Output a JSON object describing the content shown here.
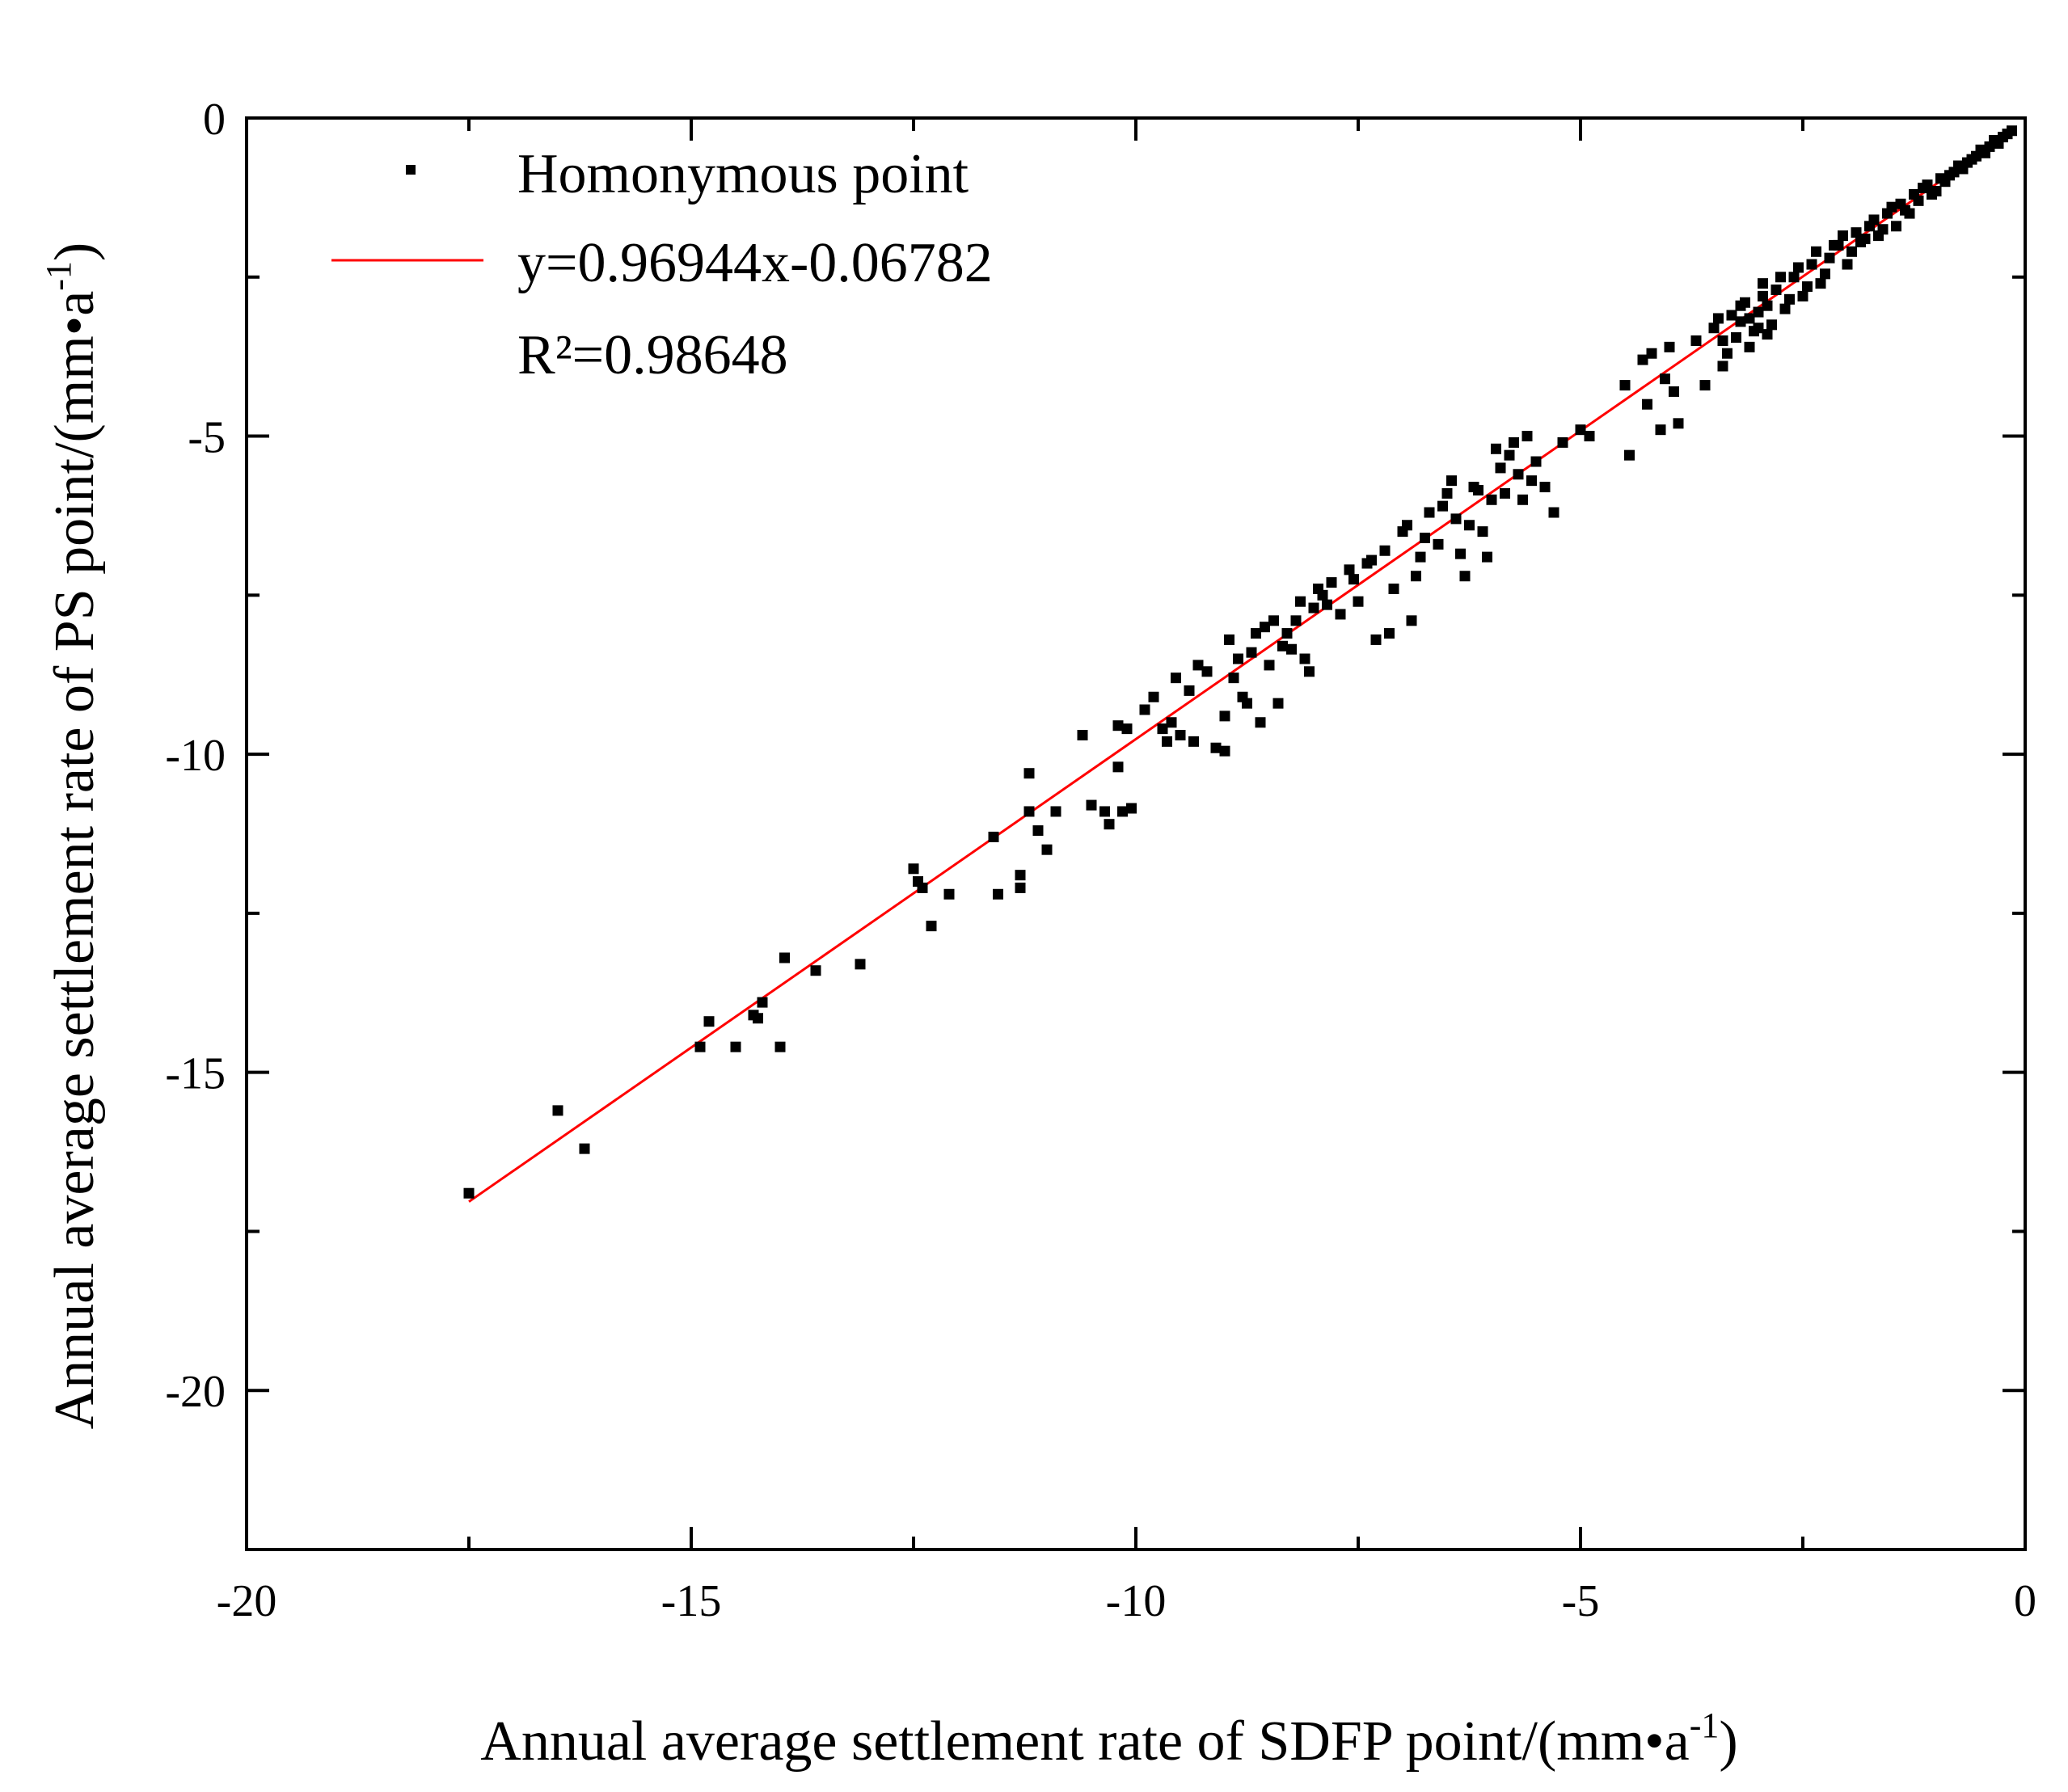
{
  "chart_data": {
    "type": "scatter",
    "title": "",
    "xlabel": "Annual average settlement rate of SDFP point/(mm•a",
    "xlabel_sup": "-1",
    "xlabel_end": ")",
    "ylabel": "Annual average settlement rate of  PS point/(mm•a",
    "ylabel_sup": "-1",
    "ylabel_end": ")",
    "xlim": [
      -20,
      0
    ],
    "ylim": [
      -22.5,
      0
    ],
    "x_ticks": [
      -20,
      -15,
      -10,
      -5,
      0
    ],
    "x_tick_labels": [
      "-20",
      "-15",
      "-10",
      "-5",
      "0"
    ],
    "y_ticks": [
      0,
      -5,
      -10,
      -15,
      -20
    ],
    "y_tick_labels": [
      "0",
      "-5",
      "-10",
      "-15",
      "-20"
    ],
    "grid": false,
    "legend_position": "top-left",
    "legend": {
      "points_label": "Homonymous point",
      "fit_label": "y=0.96944x-0.06782",
      "r2_label": "R²=0.98648"
    },
    "colors": {
      "points": "#000000",
      "fit": "#ff0000",
      "frame": "#000000"
    },
    "fit": {
      "slope": 0.96944,
      "intercept": -0.06782,
      "r2": 0.98648,
      "x_range": [
        -17.5,
        -0.1
      ]
    },
    "series": [
      {
        "name": "Homonymous point",
        "points": [
          [
            -17.5,
            -16.9
          ],
          [
            -16.5,
            -15.6
          ],
          [
            -16.2,
            -16.2
          ],
          [
            -14.9,
            -14.6
          ],
          [
            -14.8,
            -14.2
          ],
          [
            -14.5,
            -14.6
          ],
          [
            -14.3,
            -14.1
          ],
          [
            -14.2,
            -13.9
          ],
          [
            -14.25,
            -14.15
          ],
          [
            -14.0,
            -14.6
          ],
          [
            -13.95,
            -13.2
          ],
          [
            -13.6,
            -13.4
          ],
          [
            -13.1,
            -13.3
          ],
          [
            -12.5,
            -11.8
          ],
          [
            -12.45,
            -12.0
          ],
          [
            -12.4,
            -12.1
          ],
          [
            -12.3,
            -12.7
          ],
          [
            -12.1,
            -12.2
          ],
          [
            -11.6,
            -11.3
          ],
          [
            -11.55,
            -12.2
          ],
          [
            -11.3,
            -11.9
          ],
          [
            -11.3,
            -12.1
          ],
          [
            -11.2,
            -10.3
          ],
          [
            -11.2,
            -10.9
          ],
          [
            -11.1,
            -11.2
          ],
          [
            -11.0,
            -11.5
          ],
          [
            -10.9,
            -10.9
          ],
          [
            -10.6,
            -9.7
          ],
          [
            -10.5,
            -10.8
          ],
          [
            -10.35,
            -10.9
          ],
          [
            -10.3,
            -11.1
          ],
          [
            -10.2,
            -10.2
          ],
          [
            -10.15,
            -10.9
          ],
          [
            -10.1,
            -9.6
          ],
          [
            -10.05,
            -10.85
          ],
          [
            -10.2,
            -9.55
          ],
          [
            -9.9,
            -9.3
          ],
          [
            -9.8,
            -9.1
          ],
          [
            -9.6,
            -9.5
          ],
          [
            -9.5,
            -9.7
          ],
          [
            -9.4,
            -9.0
          ],
          [
            -9.35,
            -9.8
          ],
          [
            -9.2,
            -8.7
          ],
          [
            -9.1,
            -9.9
          ],
          [
            -9.0,
            -9.4
          ],
          [
            -8.9,
            -8.8
          ],
          [
            -8.8,
            -9.1
          ],
          [
            -8.7,
            -8.4
          ],
          [
            -8.6,
            -9.5
          ],
          [
            -8.55,
            -8.0
          ],
          [
            -8.5,
            -8.6
          ],
          [
            -8.4,
            -9.2
          ],
          [
            -8.35,
            -8.3
          ],
          [
            -8.3,
            -8.1
          ],
          [
            -8.2,
            -7.9
          ],
          [
            -8.1,
            -8.5
          ],
          [
            -8.0,
            -7.7
          ],
          [
            -9.55,
            -8.8
          ],
          [
            -9.7,
            -9.6
          ],
          [
            -9.65,
            -9.8
          ],
          [
            -9.3,
            -8.6
          ],
          [
            -9.0,
            -9.95
          ],
          [
            -8.95,
            -8.2
          ],
          [
            -8.85,
            -8.5
          ],
          [
            -8.75,
            -9.2
          ],
          [
            -8.65,
            -8.1
          ],
          [
            -8.45,
            -7.9
          ],
          [
            -8.25,
            -8.35
          ],
          [
            -8.15,
            -7.6
          ],
          [
            -8.05,
            -8.7
          ],
          [
            -7.95,
            -7.4
          ],
          [
            -7.9,
            -7.5
          ],
          [
            -7.8,
            -7.3
          ],
          [
            -7.7,
            -7.8
          ],
          [
            -7.6,
            -7.1
          ],
          [
            -7.5,
            -7.6
          ],
          [
            -7.4,
            -7.0
          ],
          [
            -7.3,
            -8.2
          ],
          [
            -7.2,
            -6.8
          ],
          [
            -7.1,
            -7.4
          ],
          [
            -7.0,
            -6.5
          ],
          [
            -6.9,
            -7.9
          ],
          [
            -6.8,
            -6.9
          ],
          [
            -6.7,
            -6.2
          ],
          [
            -6.6,
            -6.7
          ],
          [
            -6.5,
            -5.9
          ],
          [
            -6.4,
            -6.3
          ],
          [
            -6.3,
            -7.2
          ],
          [
            -6.2,
            -5.8
          ],
          [
            -6.1,
            -6.5
          ],
          [
            -6.0,
            -6.0
          ],
          [
            -5.9,
            -5.5
          ],
          [
            -5.8,
            -5.3
          ],
          [
            -5.7,
            -5.6
          ],
          [
            -5.6,
            -5.0
          ],
          [
            -5.5,
            -5.4
          ],
          [
            -5.4,
            -5.8
          ],
          [
            -5.3,
            -6.2
          ],
          [
            -7.85,
            -7.65
          ],
          [
            -7.55,
            -7.25
          ],
          [
            -7.35,
            -6.95
          ],
          [
            -7.15,
            -8.1
          ],
          [
            -6.95,
            -6.4
          ],
          [
            -6.85,
            -7.2
          ],
          [
            -6.75,
            -6.6
          ],
          [
            -6.55,
            -6.1
          ],
          [
            -6.45,
            -5.7
          ],
          [
            -6.35,
            -6.85
          ],
          [
            -6.25,
            -6.4
          ],
          [
            -6.15,
            -5.85
          ],
          [
            -6.05,
            -6.9
          ],
          [
            -5.95,
            -5.2
          ],
          [
            -5.85,
            -5.9
          ],
          [
            -5.75,
            -5.1
          ],
          [
            -5.65,
            -6.0
          ],
          [
            -5.55,
            -5.7
          ],
          [
            -5.0,
            -4.9
          ],
          [
            -4.9,
            -5.0
          ],
          [
            -4.5,
            -4.2
          ],
          [
            -4.45,
            -5.3
          ],
          [
            -4.3,
            -3.8
          ],
          [
            -4.25,
            -4.5
          ],
          [
            -4.2,
            -3.7
          ],
          [
            -4.1,
            -4.9
          ],
          [
            -4.05,
            -4.1
          ],
          [
            -4.0,
            -3.6
          ],
          [
            -3.95,
            -4.3
          ],
          [
            -3.9,
            -4.8
          ],
          [
            -3.7,
            -3.5
          ],
          [
            -3.6,
            -4.2
          ],
          [
            -3.5,
            -3.3
          ],
          [
            -3.4,
            -3.9
          ],
          [
            -3.35,
            -3.7
          ],
          [
            -3.3,
            -3.1
          ],
          [
            -3.25,
            -3.45
          ],
          [
            -3.2,
            -3.2
          ],
          [
            -3.15,
            -2.9
          ],
          [
            -3.1,
            -3.6
          ],
          [
            -3.05,
            -3.35
          ],
          [
            -3.0,
            -3.05
          ],
          [
            -2.95,
            -2.8
          ],
          [
            -2.9,
            -3.4
          ],
          [
            -2.85,
            -3.25
          ],
          [
            -2.8,
            -2.7
          ],
          [
            -2.7,
            -3.0
          ],
          [
            -2.6,
            -2.5
          ],
          [
            -2.5,
            -2.8
          ],
          [
            -2.4,
            -2.3
          ],
          [
            -2.3,
            -2.6
          ],
          [
            -2.2,
            -2.2
          ],
          [
            -3.45,
            -3.15
          ],
          [
            -3.4,
            -3.5
          ],
          [
            -3.2,
            -2.95
          ],
          [
            -3.1,
            -3.15
          ],
          [
            -3.0,
            -3.3
          ],
          [
            -2.95,
            -2.6
          ],
          [
            -2.9,
            -2.95
          ],
          [
            -2.75,
            -2.5
          ],
          [
            -2.65,
            -2.85
          ],
          [
            -2.55,
            -2.35
          ],
          [
            -2.45,
            -2.65
          ],
          [
            -2.35,
            -2.1
          ],
          [
            -2.25,
            -2.45
          ],
          [
            -2.15,
            -2.0
          ],
          [
            -2.1,
            -2.0
          ],
          [
            -2.0,
            -2.3
          ],
          [
            -1.9,
            -1.8
          ],
          [
            -1.8,
            -1.9
          ],
          [
            -1.7,
            -1.6
          ],
          [
            -1.6,
            -1.75
          ],
          [
            -1.5,
            -1.4
          ],
          [
            -1.45,
            -1.7
          ],
          [
            -1.4,
            -1.35
          ],
          [
            -1.3,
            -1.5
          ],
          [
            -1.25,
            -1.2
          ],
          [
            -1.2,
            -1.3
          ],
          [
            -1.1,
            -1.05
          ],
          [
            -1.0,
            -1.15
          ],
          [
            -0.95,
            -0.95
          ],
          [
            -0.9,
            -1.0
          ],
          [
            -0.8,
            -0.85
          ],
          [
            -0.75,
            -0.75
          ],
          [
            -0.7,
            -0.8
          ],
          [
            -0.6,
            -0.65
          ],
          [
            -0.55,
            -0.6
          ],
          [
            -0.5,
            -0.5
          ],
          [
            -0.45,
            -0.55
          ],
          [
            -0.4,
            -0.45
          ],
          [
            -0.35,
            -0.35
          ],
          [
            -0.3,
            -0.4
          ],
          [
            -0.25,
            -0.3
          ],
          [
            -0.2,
            -0.25
          ],
          [
            -0.15,
            -0.2
          ],
          [
            -2.05,
            -1.85
          ],
          [
            -1.95,
            -2.1
          ],
          [
            -1.85,
            -1.95
          ],
          [
            -1.75,
            -1.7
          ],
          [
            -1.65,
            -1.85
          ],
          [
            -1.55,
            -1.5
          ],
          [
            -1.35,
            -1.45
          ],
          [
            -1.15,
            -1.1
          ],
          [
            -1.05,
            -1.2
          ],
          [
            -0.85,
            -0.9
          ],
          [
            -0.65,
            -0.7
          ],
          [
            -5.2,
            -5.1
          ]
        ]
      }
    ]
  }
}
